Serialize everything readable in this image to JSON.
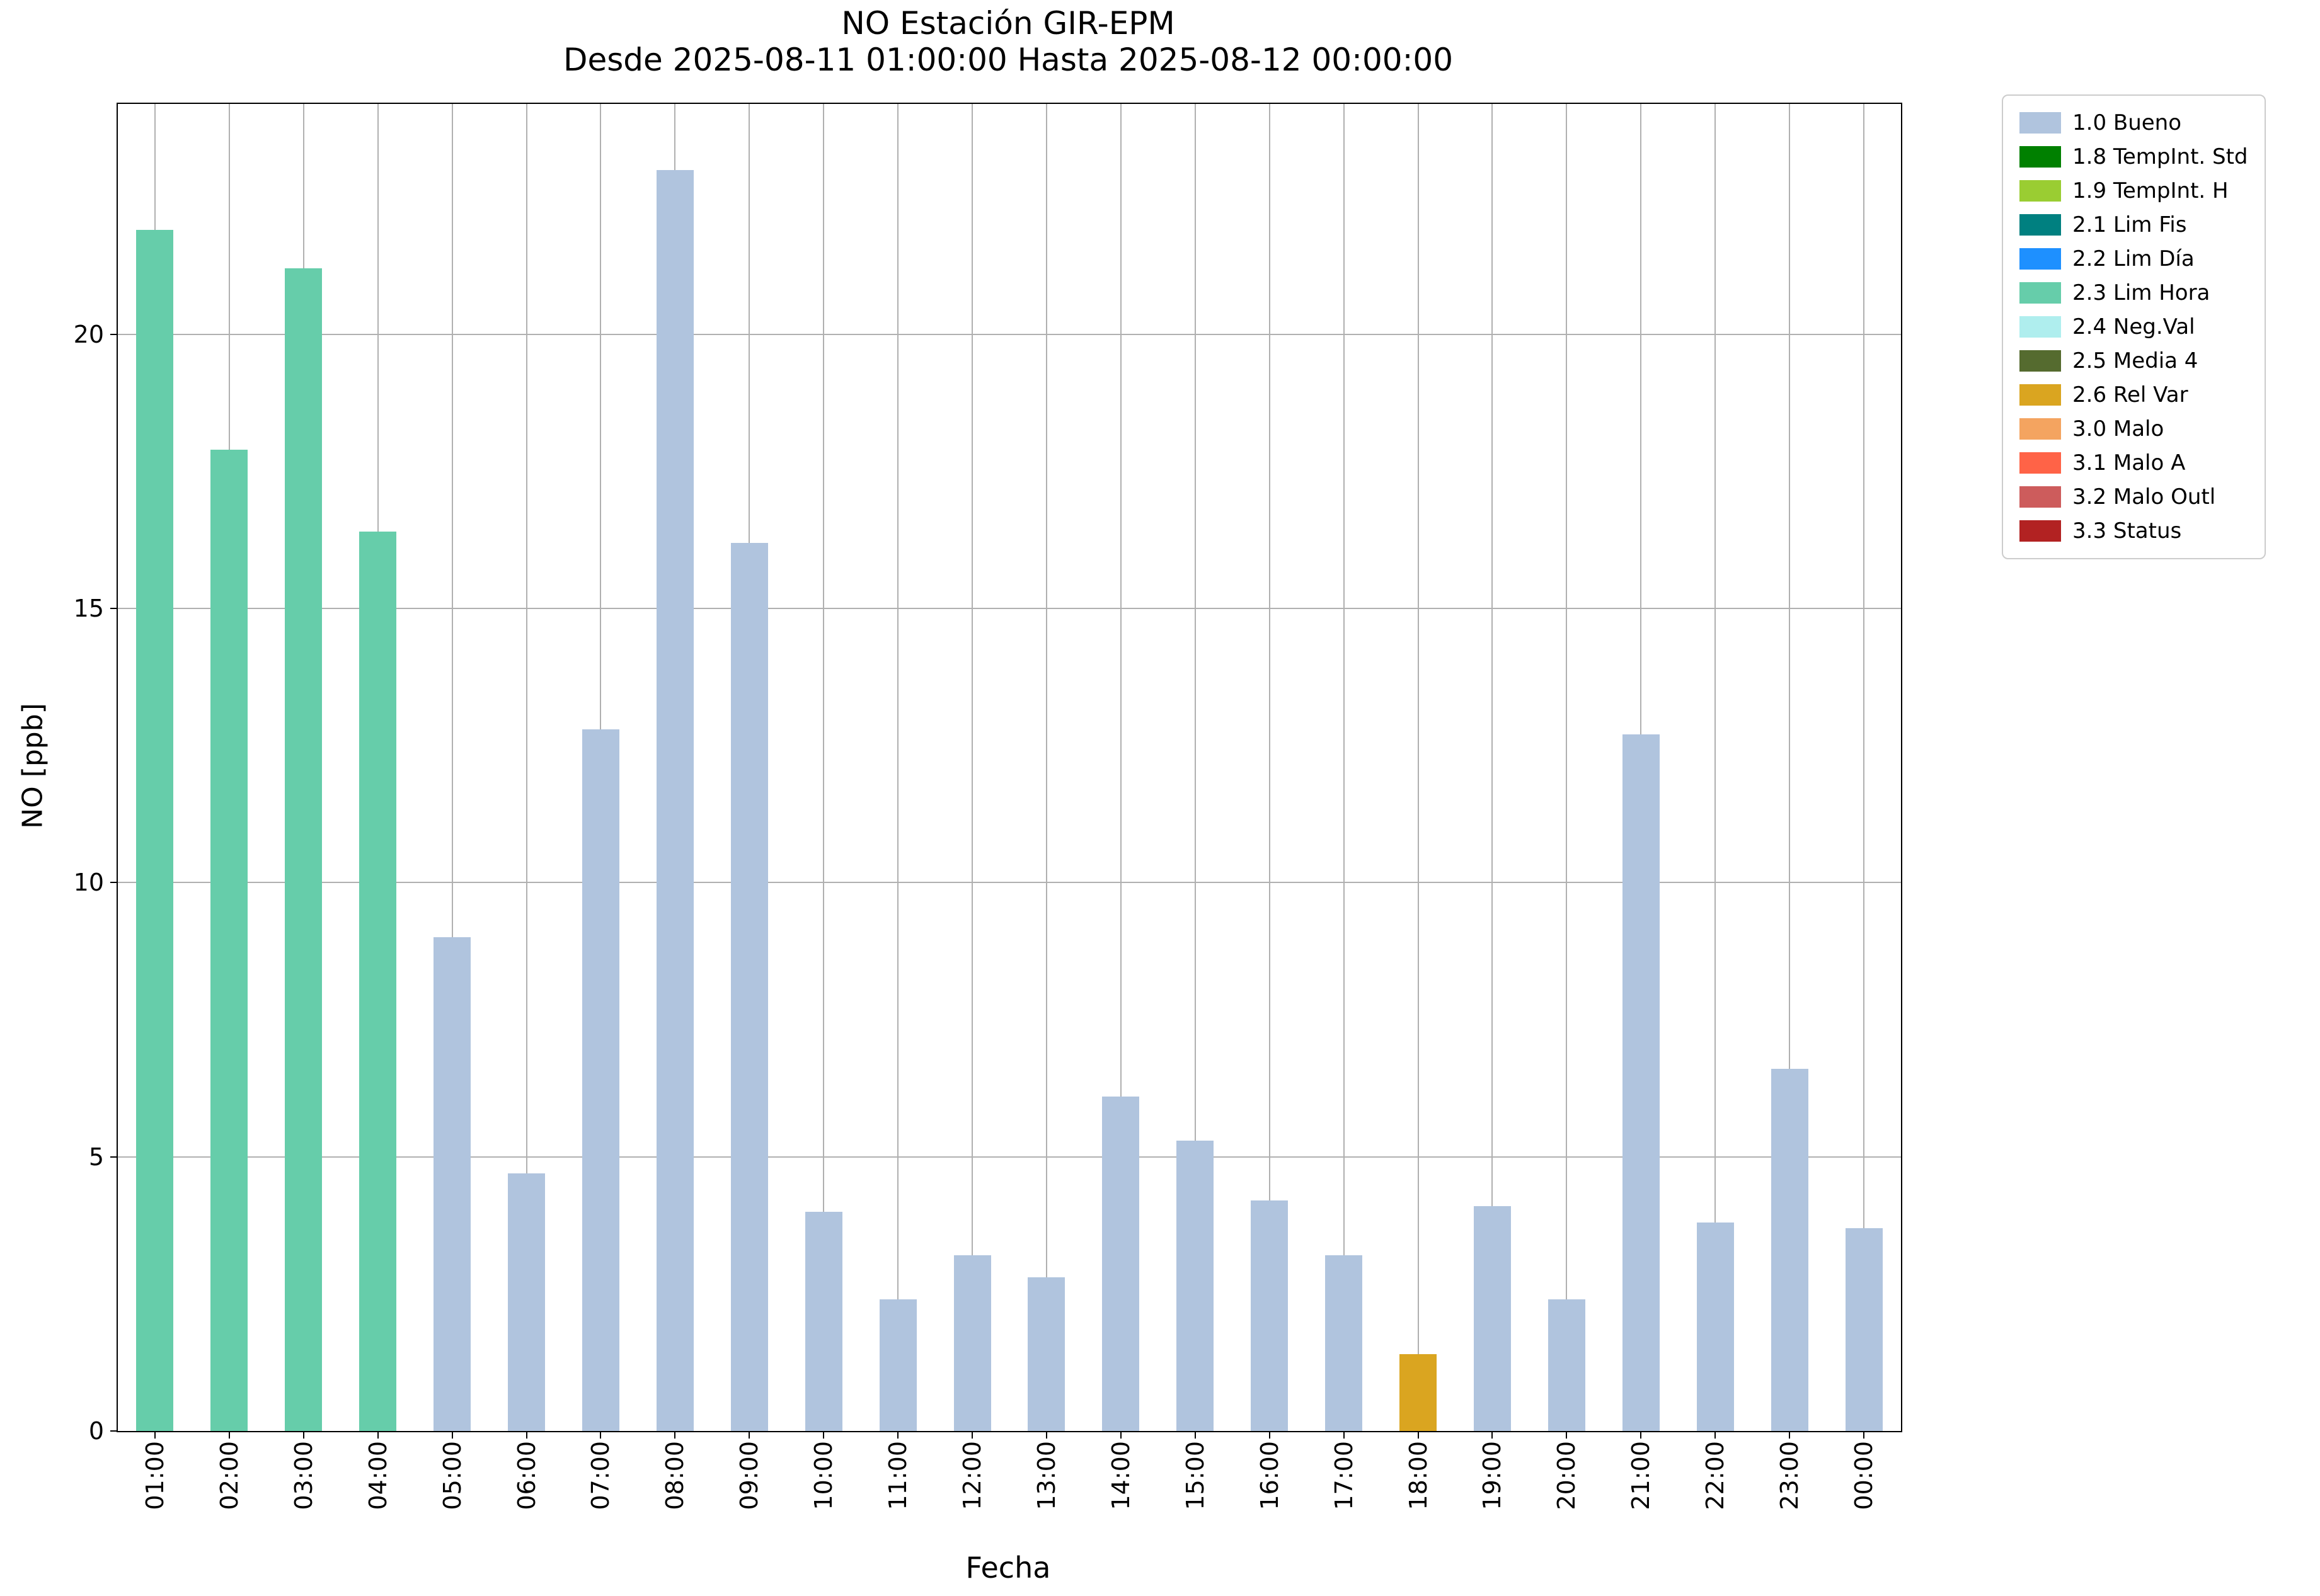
{
  "chart_data": {
    "type": "bar",
    "title": "NO Estación GIR-EPM",
    "subtitle": "Desde 2025-08-11 01:00:00 Hasta 2025-08-12 00:00:00",
    "xlabel": "Fecha",
    "ylabel": "NO [ppb]",
    "ylim": [
      0,
      24.2
    ],
    "yticks": [
      0,
      5,
      10,
      15,
      20
    ],
    "grid": true,
    "legend_position": "outside-top-right",
    "categories": [
      "01:00",
      "02:00",
      "03:00",
      "04:00",
      "05:00",
      "06:00",
      "07:00",
      "08:00",
      "09:00",
      "10:00",
      "11:00",
      "12:00",
      "13:00",
      "14:00",
      "15:00",
      "16:00",
      "17:00",
      "18:00",
      "19:00",
      "20:00",
      "21:00",
      "22:00",
      "23:00",
      "00:00"
    ],
    "values": [
      21.9,
      17.9,
      21.2,
      16.4,
      9.0,
      4.7,
      12.8,
      23.0,
      16.2,
      4.0,
      2.4,
      3.2,
      2.8,
      6.1,
      5.3,
      4.2,
      3.2,
      1.4,
      4.1,
      2.4,
      12.7,
      3.8,
      6.6,
      3.7
    ],
    "bar_flags": [
      "2.3 Lim Hora",
      "2.3 Lim Hora",
      "2.3 Lim Hora",
      "2.3 Lim Hora",
      "1.0 Bueno",
      "1.0 Bueno",
      "1.0 Bueno",
      "1.0 Bueno",
      "1.0 Bueno",
      "1.0 Bueno",
      "1.0 Bueno",
      "1.0 Bueno",
      "1.0 Bueno",
      "1.0 Bueno",
      "1.0 Bueno",
      "1.0 Bueno",
      "1.0 Bueno",
      "2.6 Rel Var",
      "1.0 Bueno",
      "1.0 Bueno",
      "1.0 Bueno",
      "1.0 Bueno",
      "1.0 Bueno",
      "1.0 Bueno"
    ],
    "legend": [
      {
        "label": "1.0 Bueno",
        "color": "#B0C4DE"
      },
      {
        "label": "1.8 TempInt. Std",
        "color": "#008000"
      },
      {
        "label": "1.9 TempInt. H",
        "color": "#9ACD32"
      },
      {
        "label": "2.1 Lim Fis",
        "color": "#008080"
      },
      {
        "label": "2.2 Lim Día",
        "color": "#1E90FF"
      },
      {
        "label": "2.3 Lim Hora",
        "color": "#66CDAA"
      },
      {
        "label": "2.4 Neg.Val",
        "color": "#AFEEEE"
      },
      {
        "label": "2.5 Media 4",
        "color": "#556B2F"
      },
      {
        "label": "2.6 Rel Var",
        "color": "#DAA520"
      },
      {
        "label": "3.0 Malo",
        "color": "#F4A460"
      },
      {
        "label": "3.1 Malo A",
        "color": "#FF6347"
      },
      {
        "label": "3.2 Malo Outl",
        "color": "#CD5C5C"
      },
      {
        "label": "3.3 Status",
        "color": "#B22222"
      }
    ]
  }
}
